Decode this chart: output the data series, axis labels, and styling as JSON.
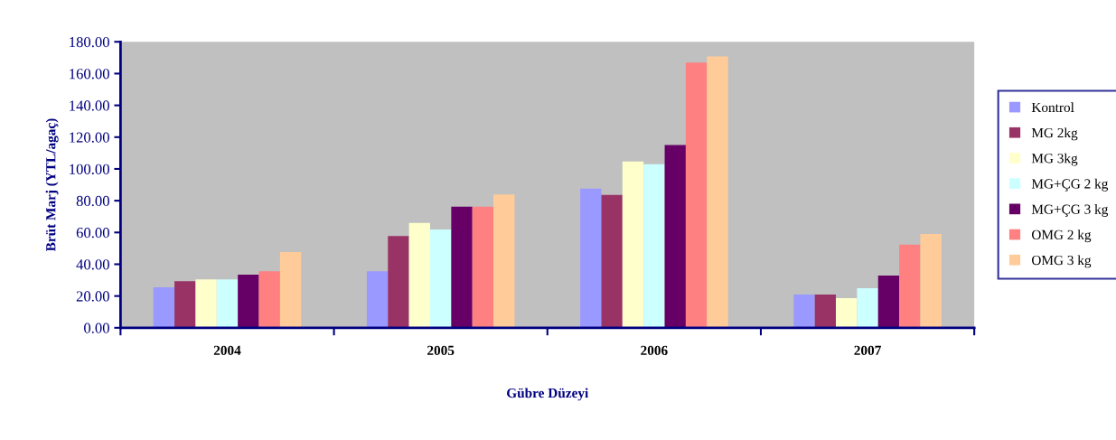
{
  "chart_data": {
    "type": "bar",
    "xlabel": "Gübre Düzeyi",
    "ylabel": "Brüt Marj (YTL/agaç)",
    "categories": [
      "2004",
      "2005",
      "2006",
      "2007"
    ],
    "series": [
      {
        "name": "Kontrol",
        "color": "#9999ff",
        "values": [
          25.5,
          35.6,
          87.6,
          20.9
        ]
      },
      {
        "name": "MG 2kg",
        "color": "#993366",
        "values": [
          29.3,
          57.8,
          83.6,
          20.9
        ]
      },
      {
        "name": "MG 3kg",
        "color": "#ffffcc",
        "values": [
          30.5,
          66.0,
          104.7,
          18.6
        ]
      },
      {
        "name": "MG+ÇG 2 kg",
        "color": "#ccffff",
        "values": [
          30.5,
          61.9,
          103.0,
          24.9
        ]
      },
      {
        "name": "MG+ÇG 3 kg",
        "color": "#660066",
        "values": [
          33.4,
          76.2,
          115.0,
          32.9
        ]
      },
      {
        "name": "OMG 2 kg",
        "color": "#ff8080",
        "values": [
          35.6,
          76.2,
          166.9,
          52.3
        ]
      },
      {
        "name": "OMG 3 kg",
        "color": "#ffcc99",
        "values": [
          47.7,
          83.9,
          170.8,
          59.1
        ]
      }
    ],
    "ylim": [
      0,
      180
    ],
    "yticks": [
      {
        "value": 0,
        "label": "0.00"
      },
      {
        "value": 20,
        "label": "20.00"
      },
      {
        "value": 40,
        "label": "40.00"
      },
      {
        "value": 60,
        "label": "60.00"
      },
      {
        "value": 80,
        "label": "80.00"
      },
      {
        "value": 100,
        "label": "100.00"
      },
      {
        "value": 120,
        "label": "120.00"
      },
      {
        "value": 140,
        "label": "140.00"
      },
      {
        "value": 160,
        "label": "160.00"
      },
      {
        "value": 180,
        "label": "180.00"
      }
    ],
    "grid": false,
    "legend": "right"
  }
}
